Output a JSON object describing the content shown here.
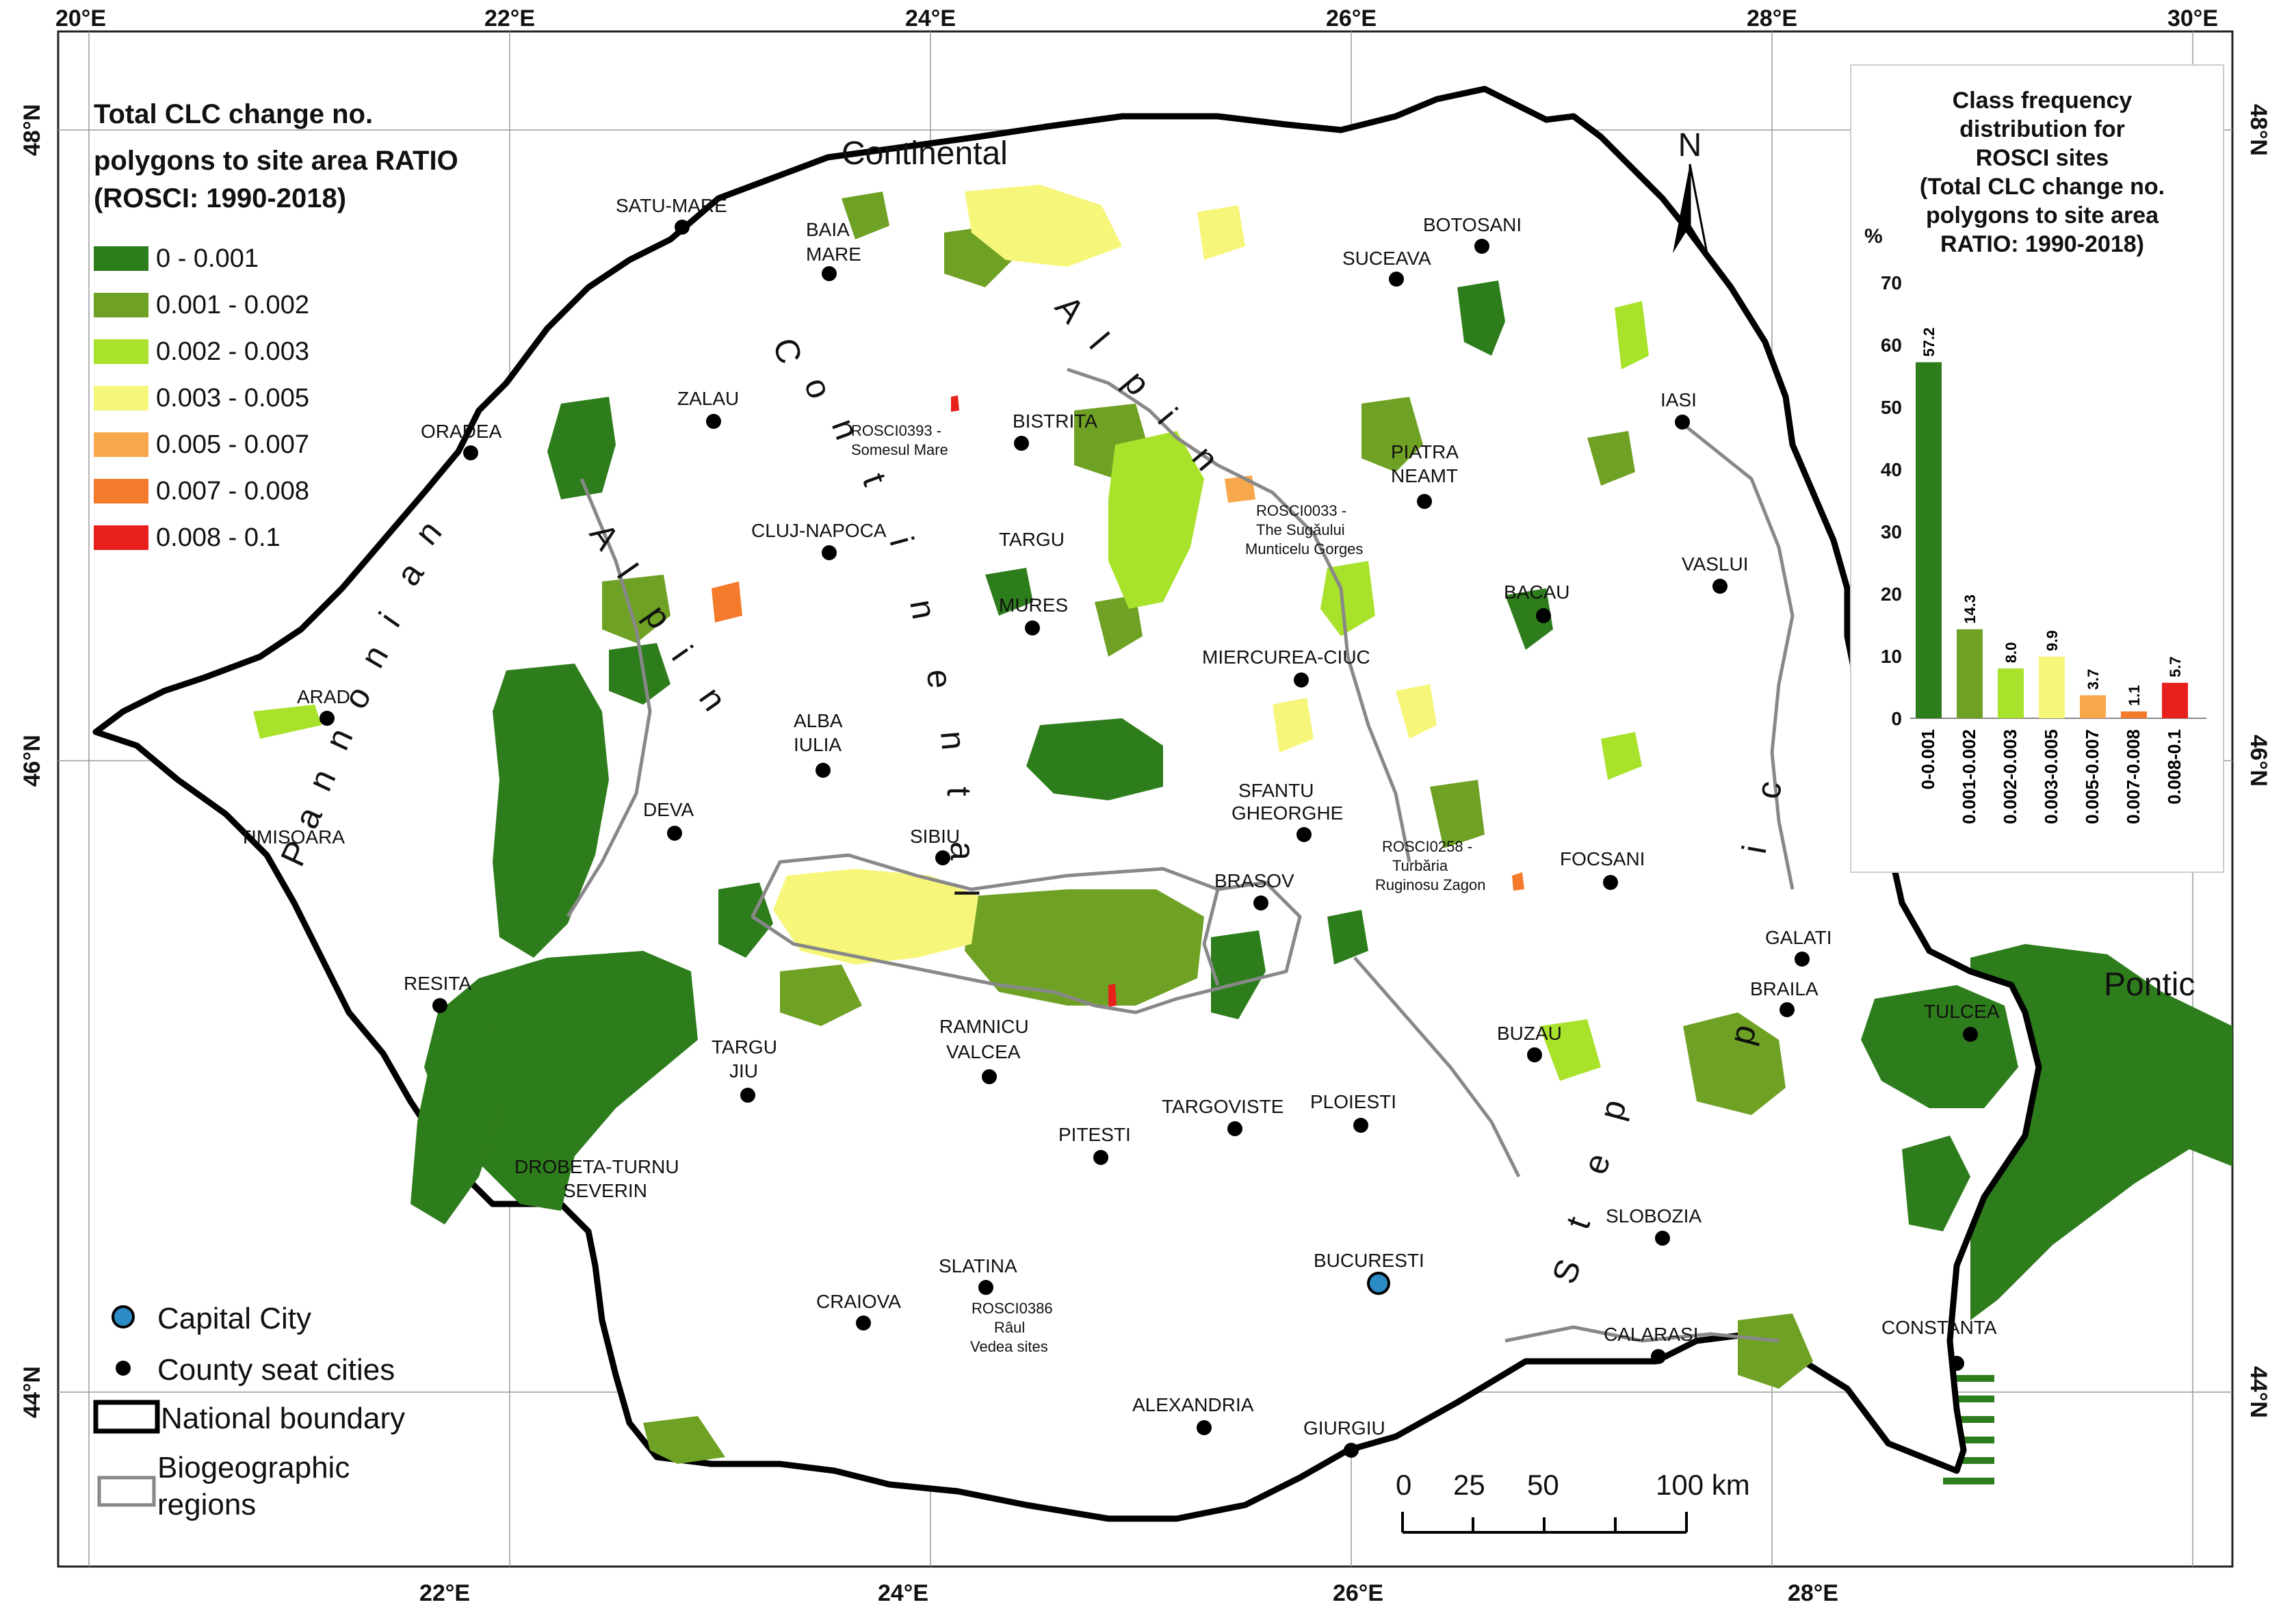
{
  "top_axis": [
    "20°E",
    "22°E",
    "24°E",
    "26°E",
    "28°E",
    "30°E"
  ],
  "bottom_axis": [
    "22°E",
    "24°E",
    "26°E",
    "28°E"
  ],
  "left_axis": [
    "48°N",
    "46°N",
    "44°N"
  ],
  "right_axis": [
    "48°N",
    "46°N",
    "44°N"
  ],
  "legend": {
    "title": [
      "Total CLC change no.",
      "polygons to site area RATIO",
      "(ROSCI: 1990-2018)"
    ],
    "classes": [
      {
        "label": "0 - 0.001",
        "color": "#2e7d1c"
      },
      {
        "label": "0.001 - 0.002",
        "color": "#6fa124"
      },
      {
        "label": "0.002 - 0.003",
        "color": "#a9e22a"
      },
      {
        "label": "0.003 - 0.005",
        "color": "#f6f67a"
      },
      {
        "label": "0.005 - 0.007",
        "color": "#f8a84c"
      },
      {
        "label": "0.007 - 0.008",
        "color": "#f47a2c"
      },
      {
        "label": "0.008 - 0.1",
        "color": "#e8201c"
      }
    ]
  },
  "lower_legend": {
    "capital": "Capital City",
    "county": "County seat cities",
    "national": "National boundary",
    "bio": [
      "Biogeographic",
      "regions"
    ]
  },
  "scale_bar": {
    "labels": [
      "0",
      "25",
      "50",
      "100 km"
    ]
  },
  "north_label": "N",
  "regions": {
    "continental_top": "Continental",
    "pontic": "Pontic",
    "continental_arc": [
      "C",
      "o",
      "n",
      "t",
      "i",
      "n",
      "e",
      "n",
      "t",
      "a",
      "l"
    ],
    "alpine_east": [
      "A",
      "l",
      "p",
      "i",
      "n"
    ],
    "alpine_west": [
      "A",
      "l",
      "p",
      "i",
      "n"
    ],
    "pannonian": [
      "P",
      "a",
      "n",
      "n",
      "o",
      "n",
      "i",
      "a",
      "n"
    ],
    "steppic": [
      "S",
      "t",
      "e",
      "p",
      "p",
      "i",
      "c"
    ]
  },
  "cities": [
    {
      "name": "SATU-MARE"
    },
    {
      "name": "BAIA"
    },
    {
      "name": "MARE"
    },
    {
      "name": "SUCEAVA"
    },
    {
      "name": "BOTOSANI"
    },
    {
      "name": "ZALAU"
    },
    {
      "name": "ORADEA"
    },
    {
      "name": "BISTRITA"
    },
    {
      "name": "IASI"
    },
    {
      "name": "PIATRA"
    },
    {
      "name": "NEAMT"
    },
    {
      "name": "CLUJ-NAPOCA"
    },
    {
      "name": "TARGU"
    },
    {
      "name": "MURES"
    },
    {
      "name": "VASLUI"
    },
    {
      "name": "BACAU"
    },
    {
      "name": "MIERCUREA-CIUC"
    },
    {
      "name": "ARAD"
    },
    {
      "name": "ALBA"
    },
    {
      "name": "IULIA"
    },
    {
      "name": "DEVA"
    },
    {
      "name": "TIMISOARA"
    },
    {
      "name": "SIBIU"
    },
    {
      "name": "SFANTU"
    },
    {
      "name": "GHEORGHE"
    },
    {
      "name": "BRASOV"
    },
    {
      "name": "FOCSANI"
    },
    {
      "name": "GALATI"
    },
    {
      "name": "BRAILA"
    },
    {
      "name": "TULCEA"
    },
    {
      "name": "RESITA"
    },
    {
      "name": "RAMNICU"
    },
    {
      "name": "VALCEA"
    },
    {
      "name": "TARGU"
    },
    {
      "name": "JIU"
    },
    {
      "name": "BUZAU"
    },
    {
      "name": "TARGOVISTE"
    },
    {
      "name": "PLOIESTI"
    },
    {
      "name": "PITESTI"
    },
    {
      "name": "DROBETA-TURNU"
    },
    {
      "name": "SEVERIN"
    },
    {
      "name": "SLOBOZIA"
    },
    {
      "name": "SLATINA"
    },
    {
      "name": "BUCURESTI"
    },
    {
      "name": "CRAIOVA"
    },
    {
      "name": "CONSTANTA"
    },
    {
      "name": "CALARASI"
    },
    {
      "name": "ALEXANDRIA"
    },
    {
      "name": "GIURGIU"
    }
  ],
  "site_labels": [
    [
      "ROSCI0393 -",
      "Somesul Mare"
    ],
    [
      "ROSCI0033 -",
      "The Sugăului",
      "Munticelu Gorges"
    ],
    [
      "ROSCI0258 -",
      "Turbăria",
      "Ruginosu Zagon"
    ],
    [
      "ROSCI0386",
      "Râul",
      "Vedea sites"
    ]
  ],
  "inset": {
    "title": [
      "Class frequency",
      "distribution for",
      "ROSCI sites",
      "(Total CLC change no.",
      "polygons to site area",
      "RATIO: 1990-2018)"
    ],
    "unit": "%",
    "y_ticks": [
      "0",
      "10",
      "20",
      "30",
      "40",
      "50",
      "60",
      "70"
    ]
  },
  "chart_data": {
    "type": "bar",
    "title": "Class frequency distribution for ROSCI sites (Total CLC change no. polygons to site area RATIO: 1990-2018)",
    "ylabel": "%",
    "categories": [
      "0-0.001",
      "0.001-0.002",
      "0.002-0.003",
      "0.003-0.005",
      "0.005-0.007",
      "0.007-0.008",
      "0.008-0.1"
    ],
    "values": [
      57.2,
      14.3,
      8.0,
      9.9,
      3.7,
      1.1,
      5.7
    ],
    "value_labels": [
      "57.2",
      "14.3",
      "8.0",
      "9.9",
      "3.7",
      "1.1",
      "5.7"
    ],
    "colors": [
      "#2e7d1c",
      "#6fa124",
      "#a9e22a",
      "#f6f67a",
      "#f8a84c",
      "#f47a2c",
      "#e8201c"
    ],
    "ylim": [
      0,
      70
    ],
    "grid": false
  }
}
